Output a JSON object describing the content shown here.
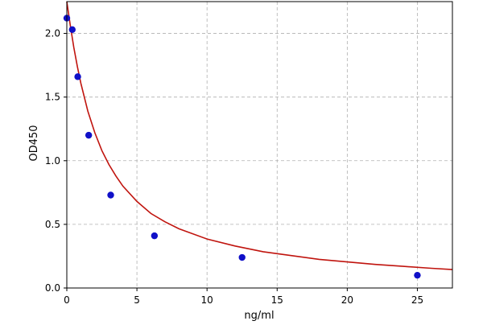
{
  "chart_data": {
    "type": "scatter",
    "title": "",
    "xlabel": "ng/ml",
    "ylabel": "OD450",
    "xlim": [
      0,
      27.5
    ],
    "ylim": [
      0,
      2.25
    ],
    "x_ticks": [
      0,
      5,
      10,
      15,
      20,
      25
    ],
    "x_tick_labels": [
      "0",
      "5",
      "10",
      "15",
      "20",
      "25"
    ],
    "y_ticks": [
      0.0,
      0.5,
      1.0,
      1.5,
      2.0
    ],
    "y_tick_labels": [
      "0.0",
      "0.5",
      "1.0",
      "1.5",
      "2.0"
    ],
    "grid": true,
    "series": [
      {
        "kind": "points",
        "color": "#1010c8",
        "x": [
          0,
          0.39,
          0.78,
          1.56,
          3.13,
          6.25,
          12.5,
          25
        ],
        "y": [
          2.12,
          2.03,
          1.66,
          1.2,
          0.73,
          0.41,
          0.24,
          0.1
        ]
      },
      {
        "kind": "fitted-curve",
        "color": "#c0140e",
        "x": [
          0,
          0.25,
          0.5,
          0.75,
          1,
          1.5,
          2,
          2.5,
          3,
          3.5,
          4,
          5,
          6,
          7,
          8,
          10,
          12,
          14,
          16,
          18,
          20,
          22,
          24,
          26,
          27.5
        ],
        "y": [
          2.25,
          2.06,
          1.89,
          1.74,
          1.61,
          1.39,
          1.22,
          1.08,
          0.97,
          0.88,
          0.8,
          0.68,
          0.585,
          0.52,
          0.465,
          0.385,
          0.33,
          0.285,
          0.255,
          0.225,
          0.205,
          0.185,
          0.17,
          0.155,
          0.145
        ]
      }
    ]
  }
}
